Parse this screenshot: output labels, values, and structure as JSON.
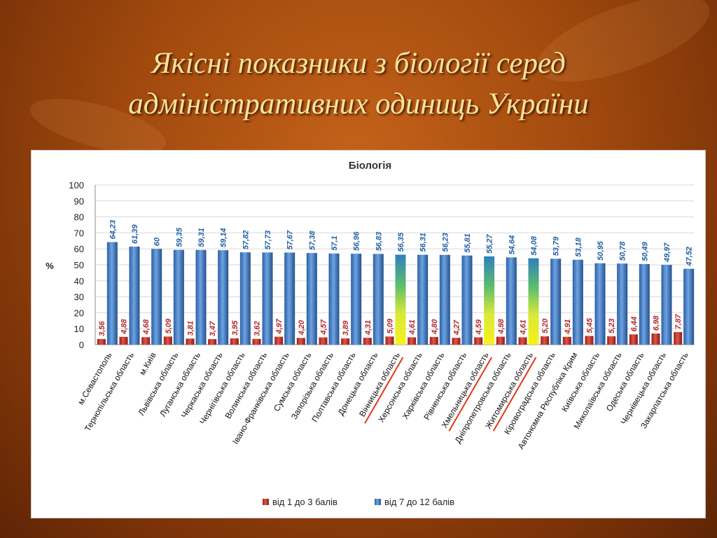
{
  "slide": {
    "title_line1": "Якісні показники з біології серед",
    "title_line2": "адміністративних одиниць України"
  },
  "colors": {
    "background": "#a24a0e",
    "title": "#fbe39a",
    "series_low": "#c0392b",
    "series_high": "#3a78c2",
    "highlight_bar": "#e8e020",
    "underline": "#e53517"
  },
  "chart_data": {
    "type": "bar",
    "title": "Біологія",
    "ylabel": "%",
    "xlabel": "",
    "ylim": [
      0,
      100
    ],
    "yticks": [
      0,
      10,
      20,
      30,
      40,
      50,
      60,
      70,
      80,
      90,
      100
    ],
    "grid": true,
    "legend_position": "bottom",
    "categories": [
      "м.Севастополь",
      "Тернопільська область",
      "м.Київ",
      "Львівська область",
      "Луганська область",
      "Черкаська область",
      "Чернігівська область",
      "Волинська область",
      "Івано-Франківська область",
      "Сумська область",
      "Запорізька область",
      "Полтавська область",
      "Донецька область",
      "Вінницька область",
      "Херсонська область",
      "Харківська область",
      "Рівненська область",
      "Хмельницька область",
      "Дніпропетровська область",
      "Житомирська область",
      "Кіровоградська область",
      "Автономна Республіка Крим",
      "Київська область",
      "Миколаївська область",
      "Одеська область",
      "Чернівецька область",
      "Закарпатська область"
    ],
    "series": [
      {
        "name": "від 1 до 3 балів",
        "values": [
          3.56,
          4.88,
          4.68,
          5.09,
          3.81,
          3.47,
          3.95,
          3.62,
          4.97,
          4.2,
          4.57,
          3.89,
          4.31,
          5.09,
          4.61,
          4.8,
          4.27,
          4.59,
          4.98,
          4.61,
          5.2,
          4.91,
          5.45,
          5.23,
          6.44,
          6.98,
          7.87
        ],
        "labels": [
          "3,56",
          "4,88",
          "4,68",
          "5,09",
          "3,81",
          "3,47",
          "3,95",
          "3,62",
          "4,97",
          "4,20",
          "4,57",
          "3,89",
          "4,31",
          "5,09",
          "4,61",
          "4,80",
          "4,27",
          "4,59",
          "4,98",
          "4,61",
          "5,20",
          "4,91",
          "5,45",
          "5,23",
          "6,44",
          "6,98",
          "7,87"
        ]
      },
      {
        "name": "від 7 до 12 балів",
        "values": [
          64.23,
          61.39,
          60,
          59.35,
          59.31,
          59.14,
          57.82,
          57.73,
          57.67,
          57.38,
          57.1,
          56.96,
          56.83,
          56.35,
          56.31,
          56.23,
          55.81,
          55.27,
          54.64,
          54.08,
          53.79,
          53.18,
          50.95,
          50.78,
          50.49,
          49.97,
          47.52
        ],
        "labels": [
          "64,23",
          "61,39",
          "60",
          "59,35",
          "59,31",
          "59,14",
          "57,82",
          "57,73",
          "57,67",
          "57,38",
          "57,1",
          "56,96",
          "56,83",
          "56,35",
          "56,31",
          "56,23",
          "55,81",
          "55,27",
          "54,64",
          "54,08",
          "53,79",
          "53,18",
          "50,95",
          "50,78",
          "50,49",
          "49,97",
          "47,52"
        ]
      }
    ],
    "highlighted_categories": [
      "Вінницька область",
      "Хмельницька область",
      "Житомирська область"
    ]
  }
}
